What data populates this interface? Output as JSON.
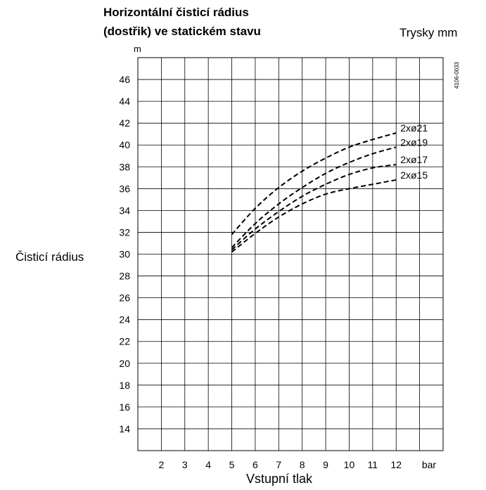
{
  "chart_data": {
    "type": "line",
    "title": "Horizontální čisticí rádius",
    "subtitle": "(dostřik) ve statickém stavu",
    "legend_title": "Trysky mm",
    "ylabel": "Čisticí rádius",
    "yunit": "m",
    "xlabel": "Vstupní tlak",
    "xunit": "bar",
    "code": "4106-0033",
    "x_ticks": [
      "2",
      "3",
      "4",
      "5",
      "6",
      "7",
      "8",
      "9",
      "10",
      "11",
      "12"
    ],
    "y_ticks": [
      "14",
      "16",
      "18",
      "20",
      "22",
      "24",
      "26",
      "28",
      "30",
      "32",
      "34",
      "36",
      "38",
      "40",
      "42",
      "44",
      "46"
    ],
    "xlim": [
      1,
      14
    ],
    "ylim": [
      12,
      48
    ],
    "grid": true,
    "legend_placement": "right",
    "series": [
      {
        "name": "2xø21",
        "x": [
          5,
          6,
          7,
          8,
          9,
          10,
          11,
          12
        ],
        "y": [
          31.8,
          34.2,
          36.1,
          37.6,
          38.8,
          39.8,
          40.5,
          41.1
        ]
      },
      {
        "name": "2xø19",
        "x": [
          5,
          6,
          7,
          8,
          9,
          10,
          11,
          12
        ],
        "y": [
          30.6,
          32.8,
          34.6,
          36.1,
          37.4,
          38.4,
          39.2,
          39.8
        ]
      },
      {
        "name": "2xø17",
        "x": [
          5,
          6,
          7,
          8,
          9,
          10,
          11,
          12
        ],
        "y": [
          30.4,
          32.3,
          33.9,
          35.3,
          36.4,
          37.3,
          37.9,
          38.2
        ]
      },
      {
        "name": "2xø15",
        "x": [
          5,
          6,
          7,
          8,
          9,
          10,
          11,
          12
        ],
        "y": [
          30.2,
          31.9,
          33.4,
          34.6,
          35.5,
          36.0,
          36.4,
          36.8
        ]
      }
    ]
  }
}
